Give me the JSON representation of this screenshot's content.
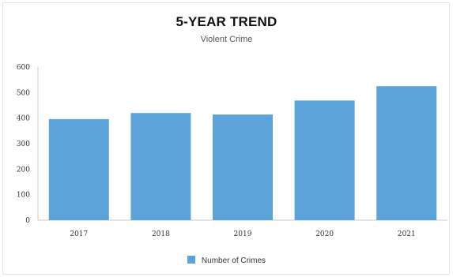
{
  "chart_data": {
    "type": "bar",
    "title": "5-YEAR TREND",
    "subtitle": "Violent Crime",
    "categories": [
      "2017",
      "2018",
      "2019",
      "2020",
      "2021"
    ],
    "series": [
      {
        "name": "Number of Crimes",
        "values": [
          396,
          420,
          414,
          469,
          525
        ]
      }
    ],
    "ylim": [
      0,
      600
    ],
    "yticks": [
      0,
      100,
      200,
      300,
      400,
      500,
      600
    ],
    "grid": false,
    "legend": "bottom",
    "colors": {
      "bar": "#5ba3d9",
      "axis": "#c8c8c8",
      "tick_text": "#333333"
    }
  }
}
